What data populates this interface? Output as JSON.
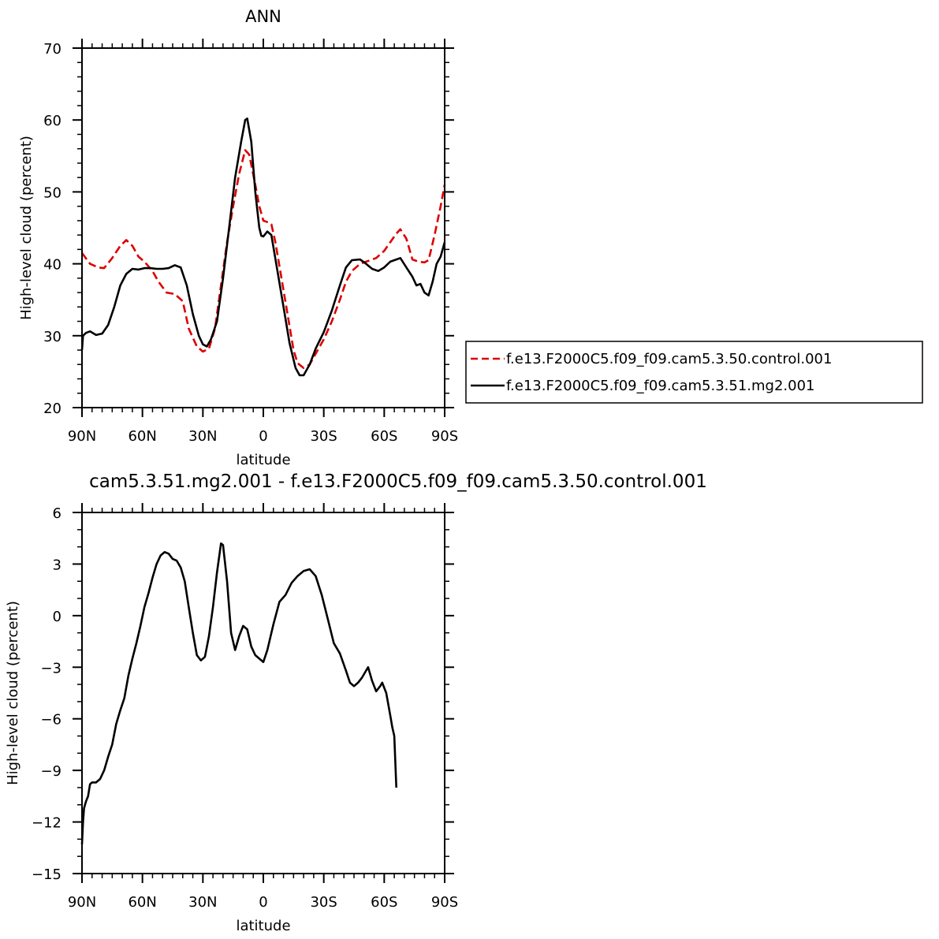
{
  "chart_data": [
    {
      "type": "line",
      "title": "ANN",
      "xlabel": "latitude",
      "ylabel": "High-level cloud (percent)",
      "x_ticks": [
        {
          "value": 90,
          "label": "90N"
        },
        {
          "value": 60,
          "label": "60N"
        },
        {
          "value": 30,
          "label": "30N"
        },
        {
          "value": 0,
          "label": "0"
        },
        {
          "value": -30,
          "label": "30S"
        },
        {
          "value": -60,
          "label": "60S"
        },
        {
          "value": -90,
          "label": "90S"
        }
      ],
      "xlim": [
        90,
        -90
      ],
      "ylim": [
        20,
        70
      ],
      "y_ticks": [
        20,
        30,
        40,
        50,
        60,
        70
      ],
      "y_minor_step": 2,
      "x_minor_step": 5,
      "legend": "right",
      "series": [
        {
          "name": "f.e13.F2000C5.f09_f09.cam5.3.50.control.001",
          "color": "#dd0000",
          "dash": "dashed",
          "points": [
            [
              90,
              41.5
            ],
            [
              86,
              40
            ],
            [
              82,
              39.5
            ],
            [
              79,
              39.4
            ],
            [
              75,
              40.8
            ],
            [
              71,
              42.5
            ],
            [
              68,
              43.3
            ],
            [
              65,
              42.5
            ],
            [
              62,
              41
            ],
            [
              59,
              40.3
            ],
            [
              55,
              39
            ],
            [
              52,
              37.5
            ],
            [
              48,
              36
            ],
            [
              44,
              35.8
            ],
            [
              40,
              34.8
            ],
            [
              37,
              31
            ],
            [
              33,
              28.5
            ],
            [
              30,
              27.8
            ],
            [
              27,
              28.2
            ],
            [
              24,
              31
            ],
            [
              21,
              37
            ],
            [
              18,
              43
            ],
            [
              15,
              48
            ],
            [
              12,
              52.5
            ],
            [
              9,
              55.8
            ],
            [
              7,
              55.2
            ],
            [
              4,
              51
            ],
            [
              2,
              48
            ],
            [
              0,
              46
            ],
            [
              -2,
              45.8
            ],
            [
              -4,
              45.5
            ],
            [
              -6,
              43
            ],
            [
              -9,
              38
            ],
            [
              -12,
              33
            ],
            [
              -15,
              28
            ],
            [
              -17,
              26.2
            ],
            [
              -20,
              25.5
            ],
            [
              -23,
              26
            ],
            [
              -26,
              27.5
            ],
            [
              -30,
              29.5
            ],
            [
              -34,
              32
            ],
            [
              -38,
              35
            ],
            [
              -41,
              37.5
            ],
            [
              -44,
              39
            ],
            [
              -48,
              40
            ],
            [
              -52,
              40.4
            ],
            [
              -56,
              40.8
            ],
            [
              -60,
              41.8
            ],
            [
              -63,
              43
            ],
            [
              -66,
              44.2
            ],
            [
              -68,
              44.8
            ],
            [
              -71,
              43.5
            ],
            [
              -74,
              40.6
            ],
            [
              -77,
              40.3
            ],
            [
              -80,
              40.2
            ],
            [
              -82,
              40.5
            ],
            [
              -85,
              44
            ],
            [
              -88,
              48
            ],
            [
              -90,
              51
            ]
          ]
        },
        {
          "name": "f.e13.F2000C5.f09_f09.cam5.3.51.mg2.001",
          "color": "#000000",
          "dash": "solid",
          "points": [
            [
              90,
              28
            ],
            [
              89.5,
              30
            ],
            [
              88,
              30.4
            ],
            [
              86,
              30.6
            ],
            [
              83,
              30.1
            ],
            [
              80,
              30.3
            ],
            [
              77,
              31.5
            ],
            [
              74,
              34
            ],
            [
              71,
              37
            ],
            [
              68,
              38.6
            ],
            [
              65,
              39.3
            ],
            [
              62,
              39.2
            ],
            [
              59,
              39.4
            ],
            [
              56,
              39.4
            ],
            [
              53,
              39.3
            ],
            [
              50,
              39.3
            ],
            [
              47,
              39.4
            ],
            [
              44,
              39.8
            ],
            [
              41,
              39.5
            ],
            [
              38,
              37
            ],
            [
              35,
              33
            ],
            [
              32,
              30
            ],
            [
              30,
              28.8
            ],
            [
              28,
              28.5
            ],
            [
              26,
              29.5
            ],
            [
              23,
              32
            ],
            [
              20,
              38
            ],
            [
              17,
              45
            ],
            [
              14,
              52
            ],
            [
              11,
              57
            ],
            [
              9,
              60
            ],
            [
              8,
              60.2
            ],
            [
              6,
              57
            ],
            [
              4,
              50
            ],
            [
              2,
              45
            ],
            [
              1,
              43.9
            ],
            [
              0,
              43.8
            ],
            [
              -2,
              44.5
            ],
            [
              -4,
              44
            ],
            [
              -7,
              39
            ],
            [
              -10,
              34
            ],
            [
              -13,
              29
            ],
            [
              -16,
              25.5
            ],
            [
              -18,
              24.5
            ],
            [
              -20,
              24.5
            ],
            [
              -23,
              26
            ],
            [
              -26,
              28.2
            ],
            [
              -30,
              30.5
            ],
            [
              -34,
              33.5
            ],
            [
              -38,
              37
            ],
            [
              -41,
              39.5
            ],
            [
              -44,
              40.5
            ],
            [
              -48,
              40.6
            ],
            [
              -51,
              40
            ],
            [
              -54,
              39.3
            ],
            [
              -57,
              39
            ],
            [
              -60,
              39.5
            ],
            [
              -63,
              40.3
            ],
            [
              -66,
              40.6
            ],
            [
              -68,
              40.8
            ],
            [
              -71,
              39.5
            ],
            [
              -74,
              38.2
            ],
            [
              -76,
              37
            ],
            [
              -78,
              37.2
            ],
            [
              -80,
              36
            ],
            [
              -82,
              35.6
            ],
            [
              -84,
              37.5
            ],
            [
              -86,
              40
            ],
            [
              -88,
              41
            ],
            [
              -90,
              43
            ]
          ]
        }
      ]
    },
    {
      "type": "line",
      "title": "cam5.3.51.mg2.001 - f.e13.F2000C5.f09_f09.cam5.3.50.control.001",
      "xlabel": "latitude",
      "ylabel": "High-level cloud (percent)",
      "x_ticks": [
        {
          "value": 90,
          "label": "90N"
        },
        {
          "value": 60,
          "label": "60N"
        },
        {
          "value": 30,
          "label": "30N"
        },
        {
          "value": 0,
          "label": "0"
        },
        {
          "value": -30,
          "label": "30S"
        },
        {
          "value": -60,
          "label": "60S"
        },
        {
          "value": -90,
          "label": "90S"
        }
      ],
      "xlim": [
        90,
        -90
      ],
      "ylim": [
        -15,
        6
      ],
      "y_ticks": [
        -15,
        -12,
        -9,
        -6,
        -3,
        0,
        3,
        6
      ],
      "y_tick_labels": [
        "−15",
        "−12",
        "−9",
        "−6",
        "−3",
        "0",
        "3",
        "6"
      ],
      "y_minor_step": 1,
      "x_minor_step": 5,
      "series": [
        {
          "color": "#000000",
          "dash": "solid",
          "points": [
            [
              90,
              -13.3
            ],
            [
              89.5,
              -12
            ],
            [
              89,
              -11.2
            ],
            [
              88,
              -10.8
            ],
            [
              87,
              -10.5
            ],
            [
              86,
              -9.8
            ],
            [
              85,
              -9.7
            ],
            [
              83,
              -9.7
            ],
            [
              81,
              -9.5
            ],
            [
              79,
              -9
            ],
            [
              77,
              -8.2
            ],
            [
              75,
              -7.5
            ],
            [
              73,
              -6.3
            ],
            [
              71,
              -5.5
            ],
            [
              69,
              -4.8
            ],
            [
              67,
              -3.5
            ],
            [
              65,
              -2.5
            ],
            [
              63,
              -1.6
            ],
            [
              61,
              -0.6
            ],
            [
              59,
              0.5
            ],
            [
              57,
              1.3
            ],
            [
              55,
              2.2
            ],
            [
              53,
              3
            ],
            [
              51,
              3.5
            ],
            [
              49,
              3.7
            ],
            [
              47,
              3.6
            ],
            [
              45,
              3.3
            ],
            [
              43,
              3.2
            ],
            [
              41,
              2.8
            ],
            [
              39,
              2
            ],
            [
              37,
              0.5
            ],
            [
              35,
              -1
            ],
            [
              33,
              -2.3
            ],
            [
              31,
              -2.6
            ],
            [
              29,
              -2.4
            ],
            [
              27,
              -1.2
            ],
            [
              25,
              0.5
            ],
            [
              23,
              2.5
            ],
            [
              21,
              4.2
            ],
            [
              20,
              4.1
            ],
            [
              18,
              2
            ],
            [
              16,
              -1
            ],
            [
              14,
              -2
            ],
            [
              12,
              -1.2
            ],
            [
              10,
              -0.6
            ],
            [
              8,
              -0.8
            ],
            [
              6,
              -1.8
            ],
            [
              4,
              -2.3
            ],
            [
              2,
              -2.5
            ],
            [
              0,
              -2.7
            ],
            [
              -2,
              -2
            ],
            [
              -5,
              -0.5
            ],
            [
              -8,
              0.8
            ],
            [
              -11,
              1.2
            ],
            [
              -14,
              1.9
            ],
            [
              -17,
              2.3
            ],
            [
              -20,
              2.6
            ],
            [
              -23,
              2.7
            ],
            [
              -26,
              2.3
            ],
            [
              -29,
              1.2
            ],
            [
              -32,
              -0.2
            ],
            [
              -35,
              -1.6
            ],
            [
              -38,
              -2.2
            ],
            [
              -41,
              -3.2
            ],
            [
              -43,
              -3.9
            ],
            [
              -45,
              -4.1
            ],
            [
              -47,
              -3.9
            ],
            [
              -49,
              -3.6
            ],
            [
              -51,
              -3.2
            ],
            [
              -52,
              -3
            ],
            [
              -54,
              -3.8
            ],
            [
              -56,
              -4.4
            ],
            [
              -58,
              -4.1
            ],
            [
              -59,
              -3.9
            ],
            [
              -61,
              -4.5
            ],
            [
              -63,
              -5.8
            ],
            [
              -64,
              -6.5
            ],
            [
              -65,
              -7
            ],
            [
              -66,
              -10
            ]
          ]
        }
      ]
    }
  ],
  "legend": {
    "entries": [
      {
        "label": "f.e13.F2000C5.f09_f09.cam5.3.50.control.001",
        "color": "#dd0000",
        "dash": "dashed"
      },
      {
        "label": "f.e13.F2000C5.f09_f09.cam5.3.51.mg2.001",
        "color": "#000000",
        "dash": "solid"
      }
    ]
  }
}
